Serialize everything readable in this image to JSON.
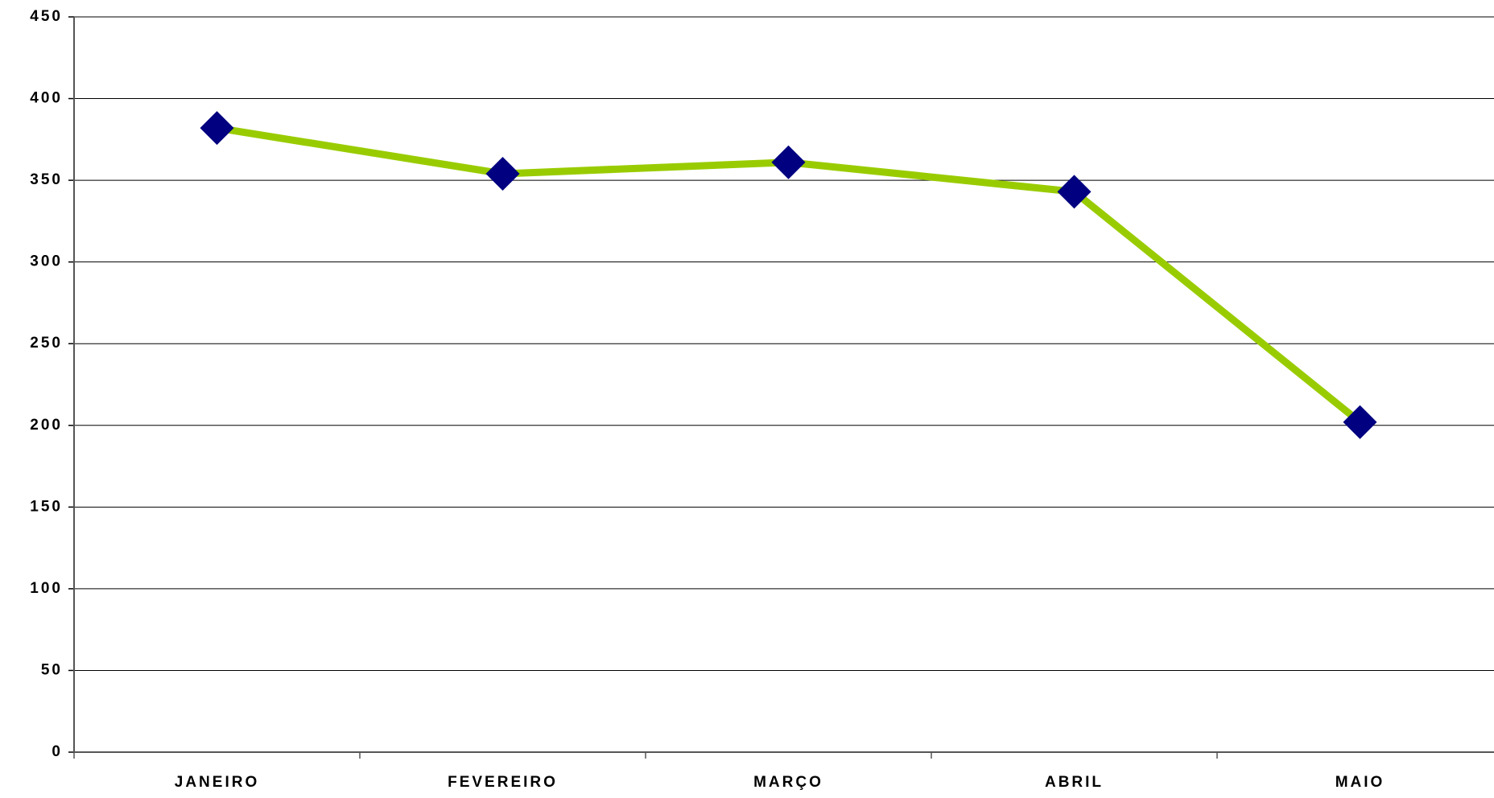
{
  "chart_data": {
    "type": "line",
    "categories": [
      "JANEIRO",
      "FEVEREIRO",
      "MARÇO",
      "ABRIL",
      "MAIO"
    ],
    "values": [
      382,
      354,
      361,
      343,
      202
    ],
    "color": "#99cc00",
    "marker_color": "#000080",
    "ylim": [
      0,
      450
    ],
    "yticks": [
      0,
      50,
      100,
      150,
      200,
      250,
      300,
      350,
      400,
      450
    ],
    "grid": true
  }
}
